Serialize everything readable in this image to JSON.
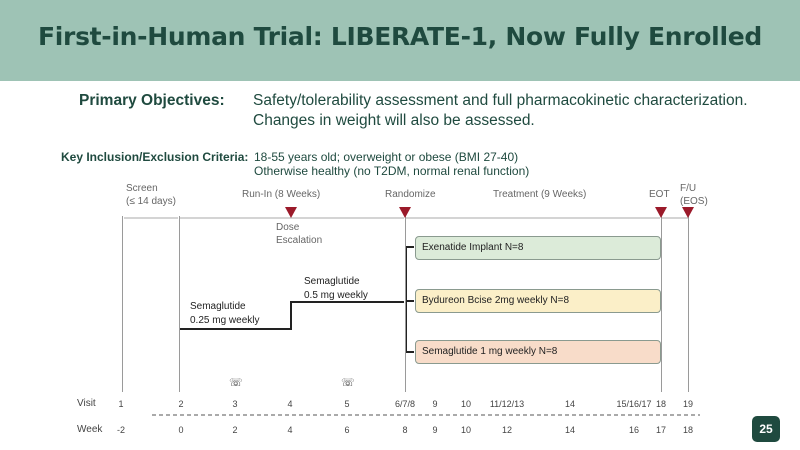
{
  "header": {
    "title": "First-in-Human Trial: LIBERATE-1, Now Fully Enrolled"
  },
  "objectives": {
    "label": "Primary Objectives:",
    "lines": [
      "Safety/tolerability assessment and full pharmacokinetic characterization.",
      "Changes in weight will also be assessed."
    ]
  },
  "criteria": {
    "label": "Key Inclusion/Exclusion Criteria:",
    "lines": [
      "18-55 years old; overweight or obese (BMI 27-40)",
      "Otherwise healthy (no T2DM, normal renal function)"
    ]
  },
  "timeline": {
    "screen_line1": "Screen",
    "screen_line2": "(≤ 14 days)",
    "runin": "Run-In (8 Weeks)",
    "randomize": "Randomize",
    "treatment": "Treatment (9 Weeks)",
    "eot": "EOT",
    "fu_line1": "F/U",
    "fu_line2": "(EOS)",
    "dose_line1": "Dose",
    "dose_line2": "Escalation",
    "sema_low_line1": "Semaglutide",
    "sema_low_line2": "0.25 mg weekly",
    "sema_high_line1": "Semaglutide",
    "sema_high_line2": "0.5 mg weekly"
  },
  "arms": [
    {
      "label": "Exenatide Implant  N=8",
      "color": "#dcebd9"
    },
    {
      "label": "Bydureon Bcise 2mg weekly N=8",
      "color": "#fbefc8"
    },
    {
      "label": "Semaglutide 1 mg weekly N=8",
      "color": "#f8dcc9"
    }
  ],
  "rows": {
    "visit_label": "Visit",
    "week_label": "Week",
    "visits": [
      "1",
      "2",
      "3",
      "4",
      "5",
      "6/7/8",
      "9",
      "10",
      "11/12/13",
      "14",
      "15/16/17",
      "18",
      "19"
    ],
    "weeks": [
      "-2",
      "0",
      "2",
      "4",
      "6",
      "8",
      "9",
      "10",
      "12",
      "14",
      "16",
      "17",
      "18"
    ]
  },
  "icons": {
    "phone": "☏"
  },
  "colors": {
    "marker": "#9b1a2a",
    "header_bg": "#9ec3b5",
    "title": "#1f4a3f"
  },
  "page_number": "25"
}
